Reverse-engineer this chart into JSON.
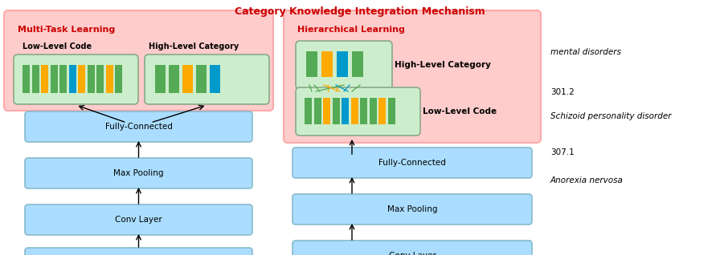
{
  "title": "Category Knowledge Integration Mechanism",
  "title_color": "#cc0000",
  "bg_color": "#ffffff",
  "panel_fill": "#ffcccc",
  "panel_edge": "#ffaaaa",
  "nn_fill": "#aaddff",
  "nn_edge": "#88bbcc",
  "green_fill": "#cceecc",
  "green_edge": "#88aa88",
  "left_bars_wide": [
    "#55aa55",
    "#55aa55",
    "#ffaa00",
    "#55aa55",
    "#55aa55",
    "#0099cc",
    "#ffaa00",
    "#55aa55",
    "#55aa55",
    "#ffaa00",
    "#55aa55"
  ],
  "left_bars_narrow": [
    "#55aa55",
    "#55aa55",
    "#ffaa00",
    "#55aa55",
    "#0099cc"
  ],
  "right_bars_top": [
    "#55aa55",
    "#ffaa00",
    "#0099cc",
    "#55aa55"
  ],
  "right_bars_bot": [
    "#55aa55",
    "#55aa55",
    "#ffaa00",
    "#55aa55",
    "#0099cc",
    "#ffaa00",
    "#55aa55",
    "#55aa55",
    "#ffaa00",
    "#55aa55"
  ],
  "side_labels": [
    {
      "text": "mental disorders",
      "italic": true
    },
    {
      "text": "301.2",
      "italic": false
    },
    {
      "text": "Schizoid personality disorder",
      "italic": true
    },
    {
      "text": "307.1",
      "italic": false
    },
    {
      "text": "Anorexia nervosa",
      "italic": true
    }
  ]
}
